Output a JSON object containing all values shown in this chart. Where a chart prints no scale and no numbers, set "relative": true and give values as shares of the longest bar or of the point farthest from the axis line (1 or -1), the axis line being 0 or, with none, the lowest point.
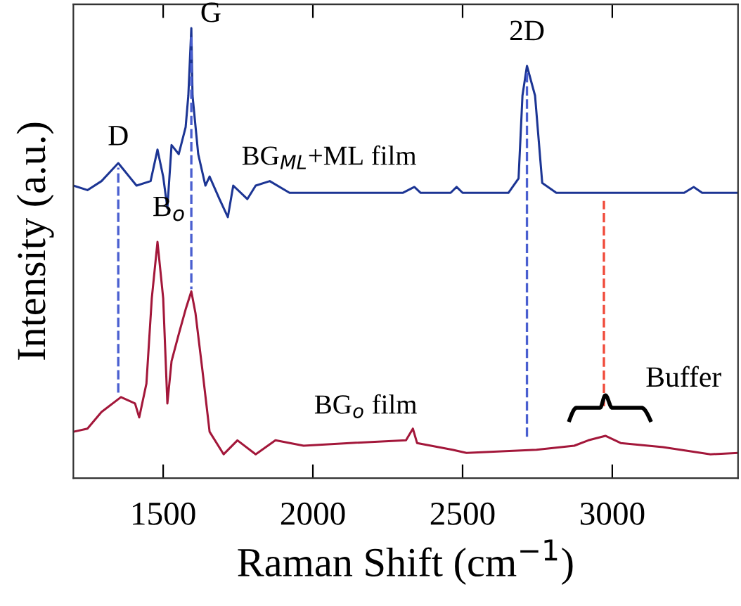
{
  "chart_data": {
    "type": "line",
    "relative": true,
    "xlabel": "Raman Shift (cm$^{−1}$)",
    "ylabel": "Intensity (a.u.)",
    "xlim": [
      1200,
      3420
    ],
    "xticks": [
      1500,
      2000,
      2500,
      3000
    ],
    "grid": false,
    "legend": false,
    "marker": "none",
    "series": [
      {
        "color": "#1c3594",
        "line_style": "solid",
        "x": [
          1200,
          1247,
          1294,
          1350,
          1411,
          1458,
          1481,
          1500,
          1514,
          1528,
          1552,
          1575,
          1584,
          1594,
          1598,
          1617,
          1641,
          1655,
          1688,
          1716,
          1734,
          1781,
          1809,
          1856,
          1922,
          2300,
          2339,
          2360,
          2460,
          2480,
          2500,
          2653,
          2687,
          2700,
          2715,
          2742,
          2766,
          2813,
          3240,
          3272,
          3300,
          3420
        ],
        "values": [
          0.65,
          0.64,
          0.66,
          0.7,
          0.65,
          0.66,
          0.73,
          0.67,
          0.6,
          0.74,
          0.72,
          0.78,
          0.85,
          1.0,
          0.85,
          0.72,
          0.65,
          0.67,
          0.62,
          0.58,
          0.65,
          0.62,
          0.65,
          0.66,
          0.634,
          0.634,
          0.647,
          0.634,
          0.634,
          0.647,
          0.634,
          0.634,
          0.666,
          0.85,
          0.916,
          0.85,
          0.656,
          0.634,
          0.634,
          0.647,
          0.634,
          0.634
        ]
      },
      {
        "color": "#a3173a",
        "line_style": "solid",
        "x": [
          1200,
          1247,
          1294,
          1359,
          1406,
          1420,
          1444,
          1462,
          1481,
          1500,
          1514,
          1528,
          1552,
          1575,
          1594,
          1608,
          1631,
          1655,
          1702,
          1748,
          1809,
          1875,
          1969,
          2123,
          2311,
          2334,
          2348,
          2466,
          2513,
          2747,
          2873,
          2920,
          2977,
          3028,
          3169,
          3328,
          3420
        ],
        "values": [
          0.103,
          0.11,
          0.147,
          0.18,
          0.166,
          0.135,
          0.21,
          0.4,
          0.525,
          0.4,
          0.166,
          0.26,
          0.32,
          0.375,
          0.415,
          0.366,
          0.24,
          0.103,
          0.053,
          0.084,
          0.053,
          0.084,
          0.072,
          0.078,
          0.084,
          0.11,
          0.078,
          0.063,
          0.056,
          0.063,
          0.072,
          0.084,
          0.094,
          0.078,
          0.069,
          0.053,
          0.056
        ]
      },
      {
        "color": "#4a5fd0",
        "line_style": "dashed",
        "x": [
          1350,
          1350
        ],
        "values": [
          0.19,
          0.69
        ]
      },
      {
        "color": "#4a5fd0",
        "line_style": "dashed",
        "x": [
          1594,
          1594
        ],
        "values": [
          0.98,
          0.42
        ]
      },
      {
        "color": "#4a5fd0",
        "line_style": "dashed",
        "x": [
          2715,
          2715
        ],
        "values": [
          0.9,
          0.09
        ]
      },
      {
        "color": "#f04a3a",
        "line_style": "dashed",
        "x": [
          2972,
          2972
        ],
        "values": [
          0.16,
          0.616
        ]
      }
    ],
    "annotations": [
      {
        "text": "D",
        "x": 1350,
        "y": 0.7
      },
      {
        "text": "G",
        "x": 1594,
        "y": 1.0
      },
      {
        "text": "2D",
        "x": 2715,
        "y": 0.916
      },
      {
        "text": "B$_{o}$",
        "x": 1481,
        "y": 0.525
      },
      "BG$_{ML}$+ML film",
      "BG$_{o}$ film",
      {
        "text": "Buffer",
        "x": 2977,
        "y": 0.094
      }
    ]
  }
}
